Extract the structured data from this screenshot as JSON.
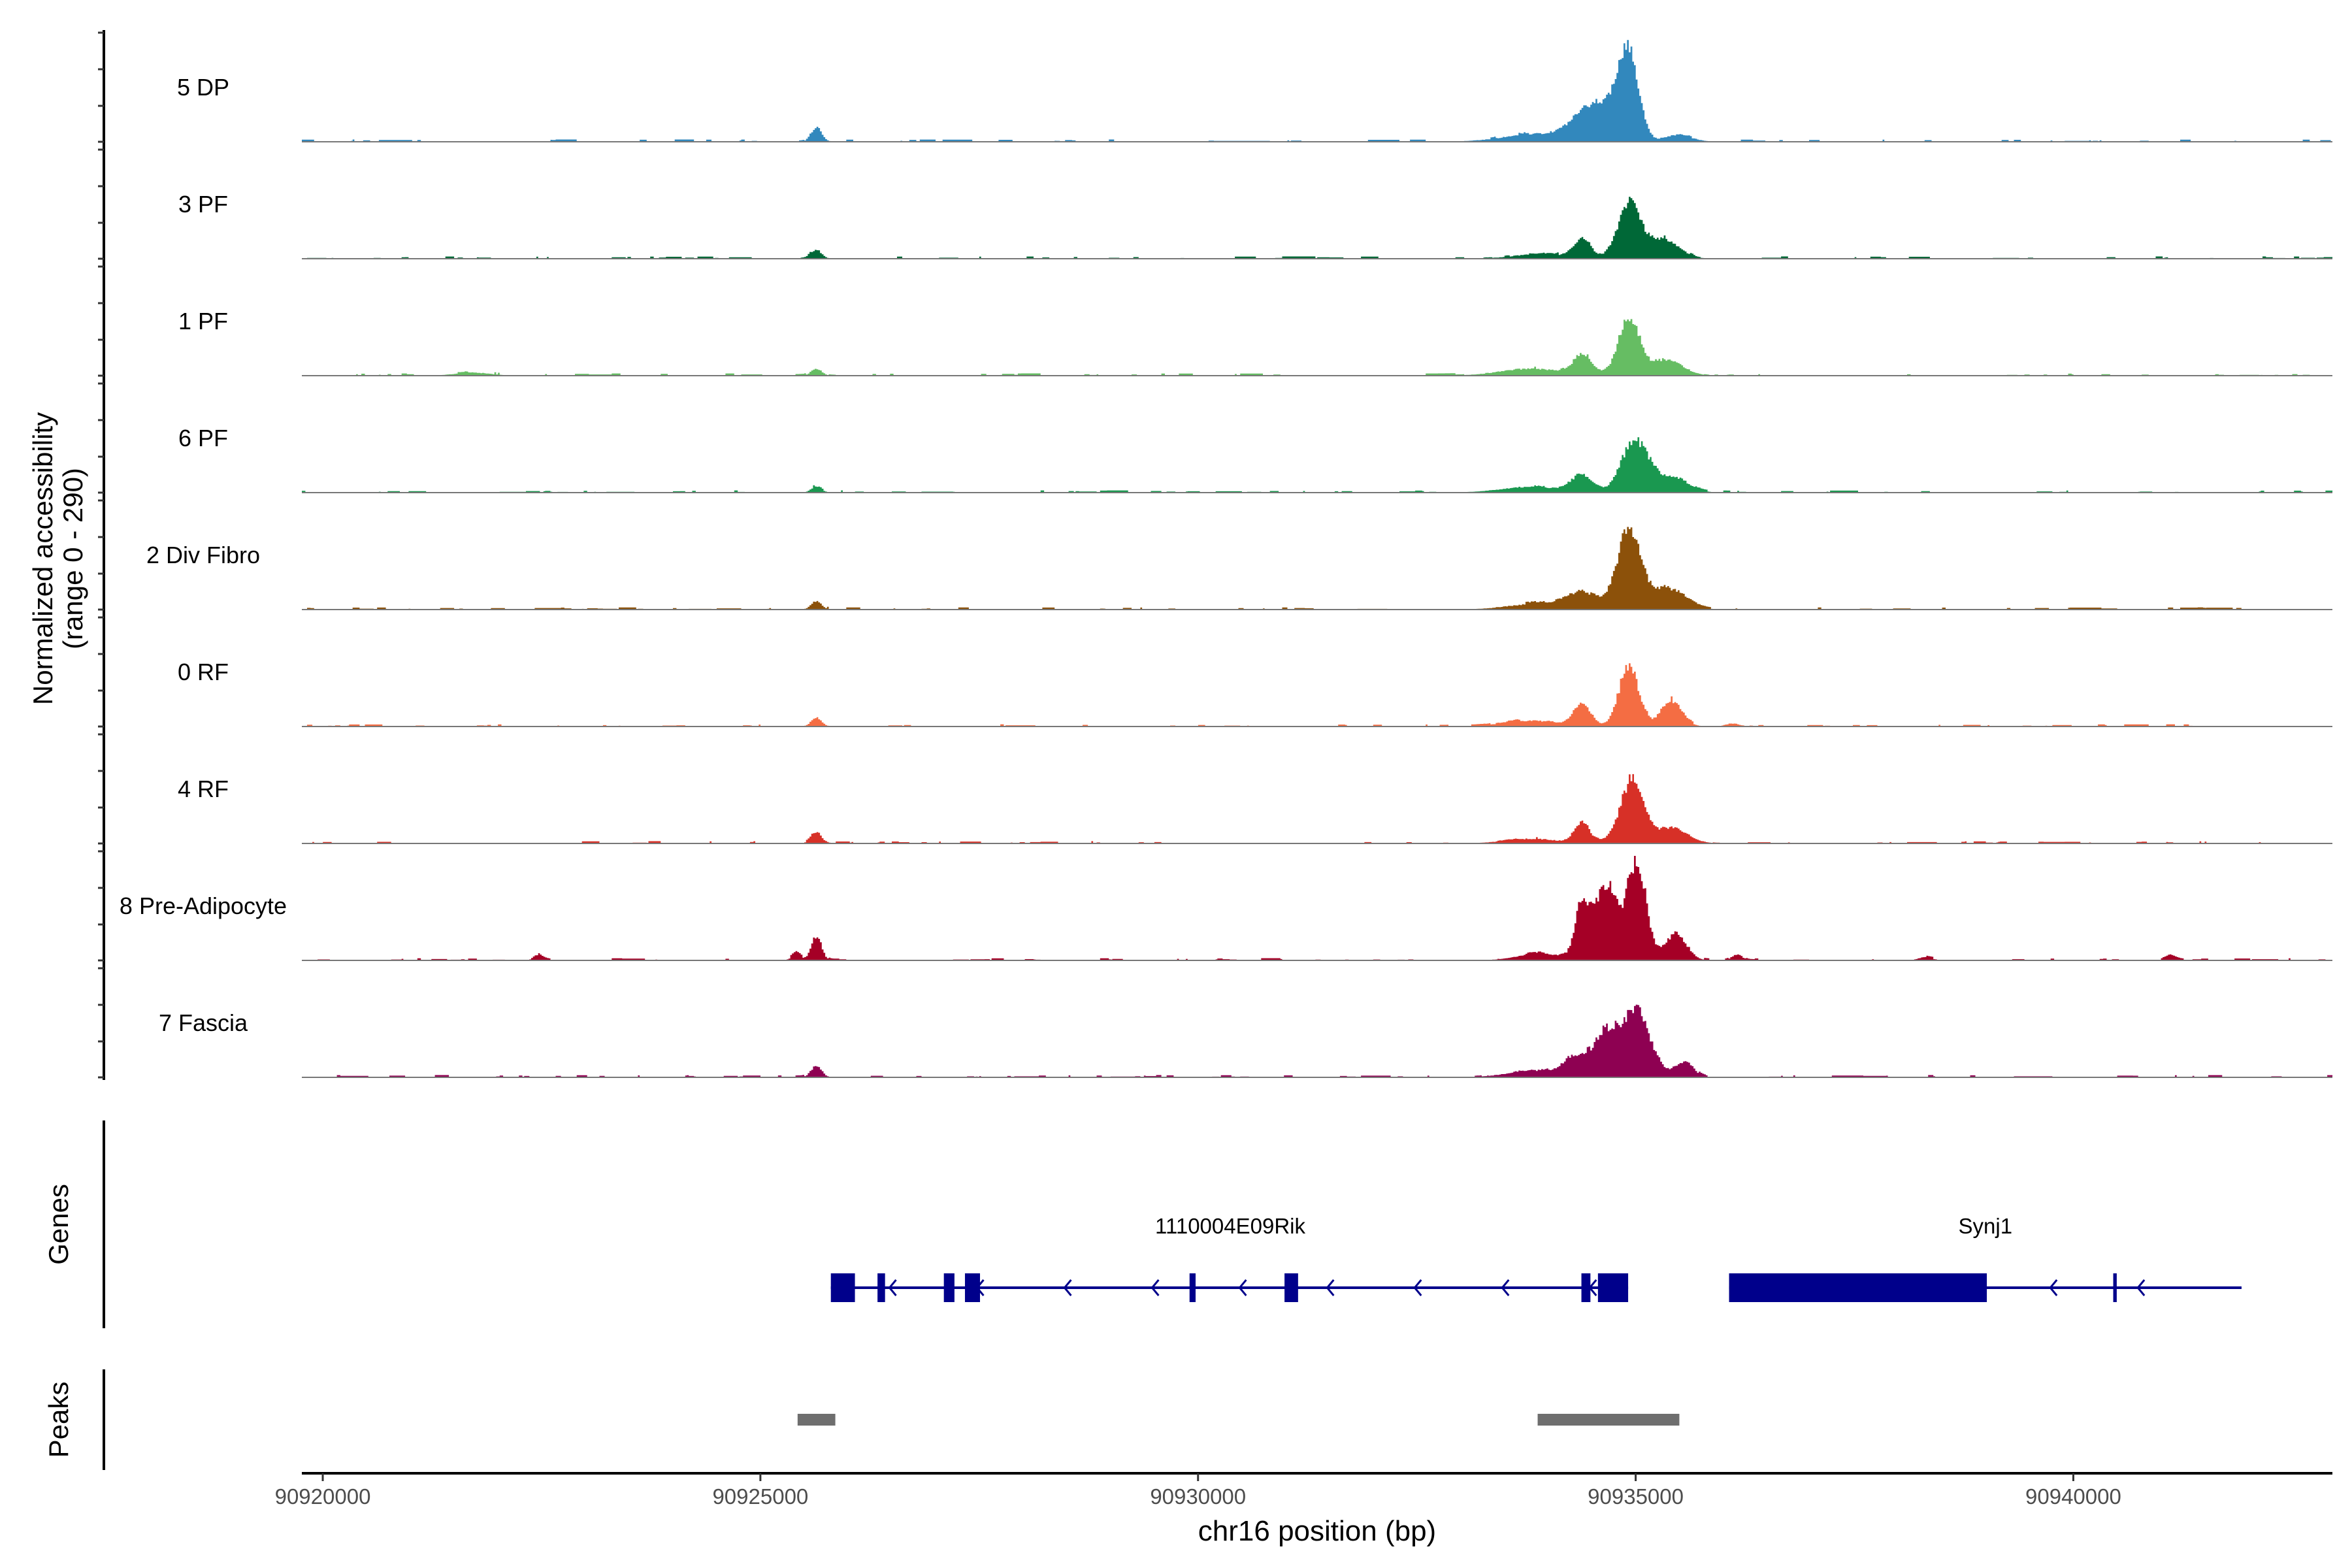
{
  "chart_data": {
    "type": "area",
    "title": "",
    "ylabel_line1": "Normalized accessibility",
    "ylabel_line2": "(range 0 - 290)",
    "ylim": [
      0,
      290
    ],
    "xlabel": "chr16 position (bp)",
    "xlim": [
      90919761,
      90942960
    ],
    "x_ticks": [
      90920000,
      90925000,
      90930000,
      90935000,
      90940000
    ],
    "x_tick_labels": [
      "90920000",
      "90925000",
      "90930000",
      "90935000",
      "90940000"
    ],
    "genes_label": "Genes",
    "peaks_label": "Peaks",
    "series": [
      {
        "name": "5 DP",
        "color": "#3288bd",
        "peaks": [
          [
            90934914,
            196,
            110
          ],
          [
            90934700,
            90,
            200
          ],
          [
            90934380,
            45,
            180
          ],
          [
            90933900,
            20,
            400
          ],
          [
            90925630,
            38,
            60
          ],
          [
            90935500,
            15,
            150
          ]
        ]
      },
      {
        "name": "3 PF",
        "color": "#006837",
        "peaks": [
          [
            90934914,
            140,
            130
          ],
          [
            90935300,
            50,
            180
          ],
          [
            90934380,
            49,
            100
          ],
          [
            90933900,
            12,
            300
          ],
          [
            90925630,
            23,
            60
          ]
        ]
      },
      {
        "name": "1 PF",
        "color": "#66bd63",
        "peaks": [
          [
            90934914,
            150,
            120
          ],
          [
            90935350,
            40,
            180
          ],
          [
            90934380,
            53,
            100
          ],
          [
            90933800,
            18,
            350
          ],
          [
            90925630,
            18,
            60
          ],
          [
            90921700,
            8,
            200
          ]
        ]
      },
      {
        "name": "6 PF",
        "color": "#1a9850",
        "peaks": [
          [
            90934980,
            136,
            150
          ],
          [
            90935400,
            40,
            180
          ],
          [
            90934380,
            45,
            120
          ],
          [
            90933800,
            15,
            350
          ],
          [
            90925630,
            15,
            60
          ]
        ]
      },
      {
        "name": "2 Div Fibro",
        "color": "#8c510a",
        "peaks": [
          [
            90934914,
            204,
            130
          ],
          [
            90935350,
            55,
            200
          ],
          [
            90934400,
            40,
            200
          ],
          [
            90933900,
            15,
            350
          ],
          [
            90925630,
            22,
            60
          ]
        ]
      },
      {
        "name": "0 RF",
        "color": "#f46d43",
        "peaks": [
          [
            90934914,
            162,
            110
          ],
          [
            90935400,
            68,
            120
          ],
          [
            90934380,
            57,
            100
          ],
          [
            90933800,
            15,
            300
          ],
          [
            90925630,
            22,
            60
          ],
          [
            90936100,
            8,
            80
          ]
        ]
      },
      {
        "name": "4 RF",
        "color": "#d73027",
        "peaks": [
          [
            90934950,
            166,
            130
          ],
          [
            90935400,
            40,
            180
          ],
          [
            90934380,
            53,
            90
          ],
          [
            90933800,
            12,
            300
          ],
          [
            90925630,
            30,
            60
          ]
        ]
      },
      {
        "name": "8 Pre-Adipocyte",
        "color": "#a50026",
        "peaks": [
          [
            90935000,
            260,
            110
          ],
          [
            90934650,
            200,
            120
          ],
          [
            90934380,
            150,
            80
          ],
          [
            90935450,
            70,
            120
          ],
          [
            90933900,
            18,
            250
          ],
          [
            90925630,
            57,
            60
          ],
          [
            90925400,
            18,
            50
          ],
          [
            90922450,
            15,
            50
          ],
          [
            90936150,
            15,
            60
          ],
          [
            90941100,
            10,
            60
          ],
          [
            90938300,
            8,
            80
          ]
        ]
      },
      {
        "name": "7 Fascia",
        "color": "#8e0152",
        "peaks": [
          [
            90935000,
            166,
            160
          ],
          [
            90934650,
            110,
            140
          ],
          [
            90934300,
            45,
            150
          ],
          [
            90935550,
            40,
            100
          ],
          [
            90933800,
            15,
            300
          ],
          [
            90925630,
            30,
            60
          ]
        ]
      }
    ],
    "genes": [
      {
        "name": "1110004E09Rik",
        "strand": "-",
        "start": 90925805,
        "end": 90934914,
        "label_pos": 90930368,
        "exons": [
          [
            90925805,
            90926080
          ],
          [
            90926338,
            90926424
          ],
          [
            90927096,
            90927217
          ],
          [
            90927337,
            90927509
          ],
          [
            90929903,
            90929972
          ],
          [
            90930988,
            90931143
          ],
          [
            90934380,
            90934483
          ],
          [
            90934569,
            90934914
          ]
        ]
      },
      {
        "name": "Synj1",
        "strand": "-",
        "start": 90936067,
        "end": 90941922,
        "label_pos": 90938995,
        "exons": [
          [
            90936067,
            90939012
          ],
          [
            90940456,
            90940496
          ]
        ]
      }
    ],
    "gene_color": "#00008b",
    "peak_regions": [
      [
        90925425,
        90925856
      ],
      [
        90933880,
        90935499
      ]
    ],
    "peak_color": "#6e6e6e"
  }
}
